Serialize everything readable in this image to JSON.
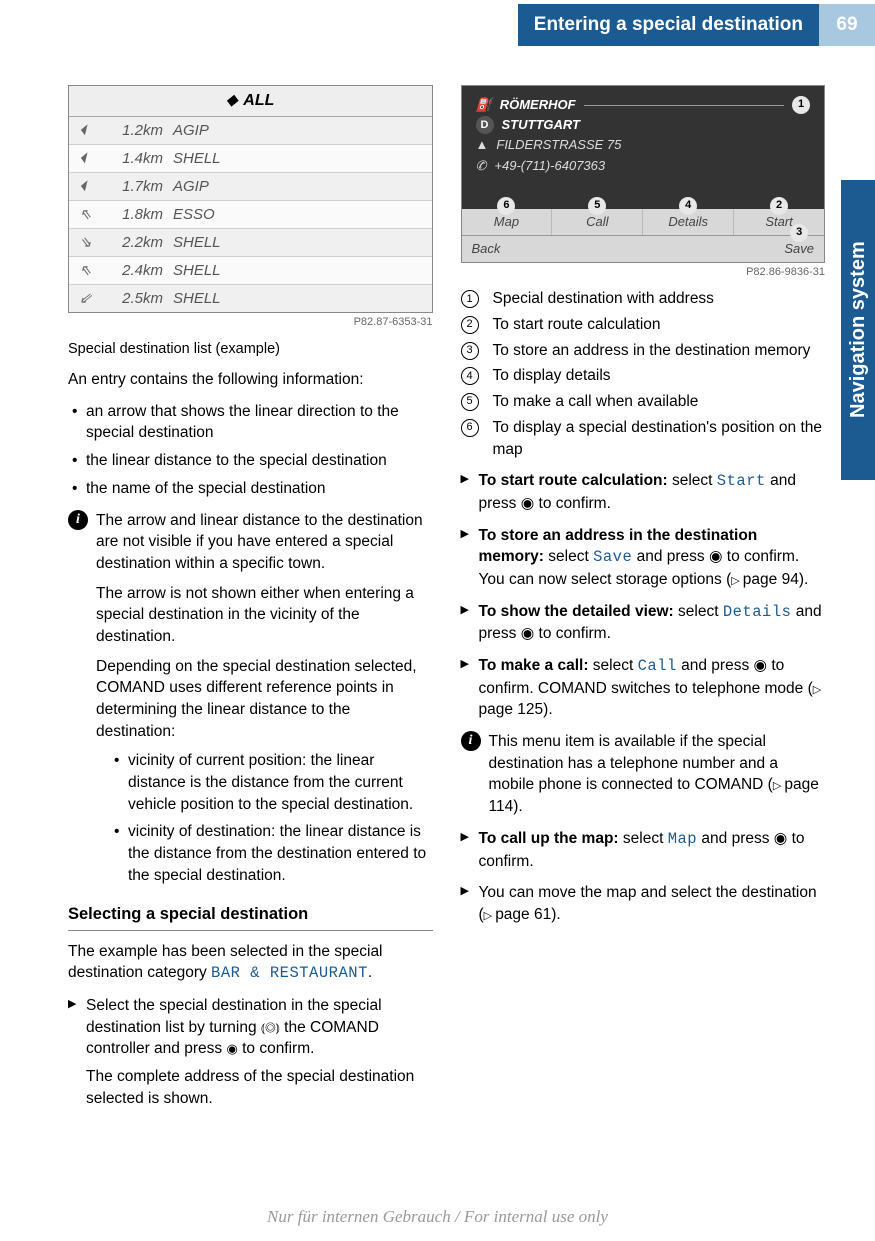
{
  "header": {
    "title": "Entering a special destination",
    "page_number": "69"
  },
  "side_tab": "Navigation system",
  "image1": {
    "header_icon": "⬥",
    "header_text": "ALL",
    "rows": [
      {
        "icon": "⏴",
        "dist": "1.2km",
        "name": "AGIP"
      },
      {
        "icon": "⏴",
        "dist": "1.4km",
        "name": "SHELL"
      },
      {
        "icon": "⏴",
        "dist": "1.7km",
        "name": "AGIP"
      },
      {
        "icon": "⇖",
        "dist": "1.8km",
        "name": "ESSO"
      },
      {
        "icon": "⇘",
        "dist": "2.2km",
        "name": "SHELL"
      },
      {
        "icon": "⇖",
        "dist": "2.4km",
        "name": "SHELL"
      },
      {
        "icon": "⇙",
        "dist": "2.5km",
        "name": "SHELL"
      }
    ],
    "code": "P82.87-6353-31",
    "caption": "Special destination list (example)"
  },
  "intro": "An entry contains the following information:",
  "bullets": [
    "an arrow that shows the linear direction to the special destination",
    "the linear distance to the special destination",
    "the name of the special destination"
  ],
  "info1": {
    "p1": "The arrow and linear distance to the destination are not visible if you have entered a special destination within a specific town.",
    "p2": "The arrow is not shown either when entering a special destination in the vicinity of the destination.",
    "p3": "Depending on the special destination selected, COMAND uses different reference points in determining the linear distance to the destination:",
    "sub": [
      "vicinity of current position: the linear distance is the distance from the current vehicle position to the special destination.",
      "vicinity of destination: the linear distance is the distance from the destination entered to the special destination."
    ]
  },
  "heading1": "Selecting a special destination",
  "example_pre": "The example has been selected in the special destination category ",
  "example_cat": "BAR & RESTAURANT",
  "example_post": ".",
  "step1_pre": "Select the special destination in the special destination list by turning ",
  "step1_sym": "⦅◎⦆",
  "step1_mid": " the COMAND controller and press ",
  "step1_btn": "◉",
  "step1_post": " to confirm.",
  "step1_result": "The complete address of the special destination selected is shown.",
  "image2": {
    "line1": "RÖMERHOF",
    "line2_icon": "D",
    "line2": "STUTTGART",
    "line3": "FILDERSTRASSE 75",
    "line4": "+49-(711)-6407363",
    "menu": [
      "Map",
      "Call",
      "Details",
      "Start"
    ],
    "back": "Back",
    "save": "Save",
    "badges_top": "1",
    "badges_menu": [
      "6",
      "5",
      "4",
      "2"
    ],
    "badge_save": "3",
    "code": "P82.86-9836-31"
  },
  "legend": [
    {
      "n": "1",
      "t": "Special destination with address"
    },
    {
      "n": "2",
      "t": "To start route calculation"
    },
    {
      "n": "3",
      "t": "To store an address in the destination memory"
    },
    {
      "n": "4",
      "t": "To display details"
    },
    {
      "n": "5",
      "t": "To make a call when available"
    },
    {
      "n": "6",
      "t": "To display a special destination's position on the map"
    }
  ],
  "steps2": [
    {
      "bold": "To start route calculation:",
      "pre": " select ",
      "mono": "Start",
      "post": " and press ◉ to confirm."
    },
    {
      "bold": "To store an address in the destination memory:",
      "pre": " select ",
      "mono": "Save",
      "post": " and press ◉ to confirm. You can now select storage options (",
      "ref": "page 94",
      "post2": ")."
    },
    {
      "bold": "To show the detailed view:",
      "pre": " select ",
      "mono": "Details",
      "post": " and press ◉ to confirm."
    },
    {
      "bold": "To make a call:",
      "pre": " select ",
      "mono": "Call",
      "post": " and press ◉ to confirm. COMAND switches to telephone mode (",
      "ref": "page 125",
      "post2": ")."
    }
  ],
  "info2": {
    "pre": "This menu item is available if the special destination has a telephone number and a mobile phone is connected to COMAND (",
    "ref": "page 114",
    "post": ")."
  },
  "steps3": [
    {
      "bold": "To call up the map:",
      "pre": " select ",
      "mono": "Map",
      "post": " and press ◉ to confirm."
    },
    {
      "plain_pre": "You can move the map and select the destination (",
      "ref": "page 61",
      "post": ")."
    }
  ],
  "footer": "Nur für internen Gebrauch / For internal use only"
}
